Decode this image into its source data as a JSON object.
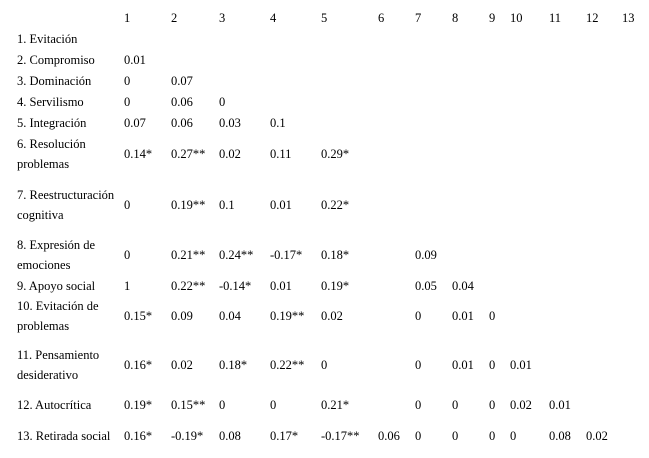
{
  "table": {
    "headers": [
      "1",
      "2",
      "3",
      "4",
      "5",
      "6",
      "7",
      "8",
      "9",
      "10",
      "11",
      "12",
      "13"
    ],
    "rows": [
      {
        "label": "1. Evitación",
        "values": [
          "",
          "",
          "",
          "",
          "",
          "",
          "",
          "",
          "",
          "",
          "",
          "",
          ""
        ]
      },
      {
        "label": "2. Compromiso",
        "values": [
          "0.01",
          "",
          "",
          "",
          "",
          "",
          "",
          "",
          "",
          "",
          "",
          "",
          ""
        ]
      },
      {
        "label": "3. Dominación",
        "values": [
          "0",
          "0.07",
          "",
          "",
          "",
          "",
          "",
          "",
          "",
          "",
          "",
          "",
          ""
        ]
      },
      {
        "label": "4. Servilismo",
        "values": [
          "0",
          "0.06",
          "0",
          "",
          "",
          "",
          "",
          "",
          "",
          "",
          "",
          "",
          ""
        ]
      },
      {
        "label": "5. Integración",
        "values": [
          "0.07",
          "0.06",
          "0.03",
          "0.1",
          "",
          "",
          "",
          "",
          "",
          "",
          "",
          "",
          ""
        ]
      },
      {
        "label": "6. Resolución problemas",
        "values": [
          "0.14*",
          "0.27**",
          "0.02",
          "0.11",
          "0.29*",
          "",
          "",
          "",
          "",
          "",
          "",
          "",
          ""
        ]
      },
      {
        "label": "7. Reestructuración cognitiva",
        "values": [
          "0",
          "0.19**",
          "0.1",
          "0.01",
          "0.22*",
          "",
          "",
          "",
          "",
          "",
          "",
          "",
          ""
        ]
      },
      {
        "label": "8. Expresión de emociones",
        "values": [
          "0",
          "0.21**",
          "0.24**",
          "-0.17*",
          "0.18*",
          "",
          "0.09",
          "",
          "",
          "",
          "",
          "",
          ""
        ]
      },
      {
        "label": "9. Apoyo social",
        "values": [
          "1",
          "0.22**",
          "-0.14*",
          "0.01",
          "0.19*",
          "",
          "0.05",
          "0.04",
          "",
          "",
          "",
          "",
          ""
        ]
      },
      {
        "label": "10. Evitación de problemas",
        "values": [
          "0.15*",
          "0.09",
          "0.04",
          "0.19**",
          "0.02",
          "",
          "0",
          "0.01",
          "0",
          "",
          "",
          "",
          ""
        ]
      },
      {
        "label": "11. Pensamiento desiderativo",
        "values": [
          "0.16*",
          "0.02",
          "0.18*",
          "0.22**",
          "0",
          "",
          "0",
          "0.01",
          "0",
          "0.01",
          "",
          "",
          ""
        ]
      },
      {
        "label": "12. Autocrítica",
        "values": [
          "0.19*",
          "0.15**",
          "0",
          "0",
          "0.21*",
          "",
          "0",
          "0",
          "0",
          "0.02",
          "0.01",
          "",
          ""
        ]
      },
      {
        "label": "13. Retirada social",
        "values": [
          "0.16*",
          "-0.19*",
          "0.08",
          "0.17*",
          "-0.17**",
          "0.06",
          "0",
          "0",
          "0",
          "0",
          "0.08",
          "0.02",
          ""
        ]
      }
    ]
  }
}
